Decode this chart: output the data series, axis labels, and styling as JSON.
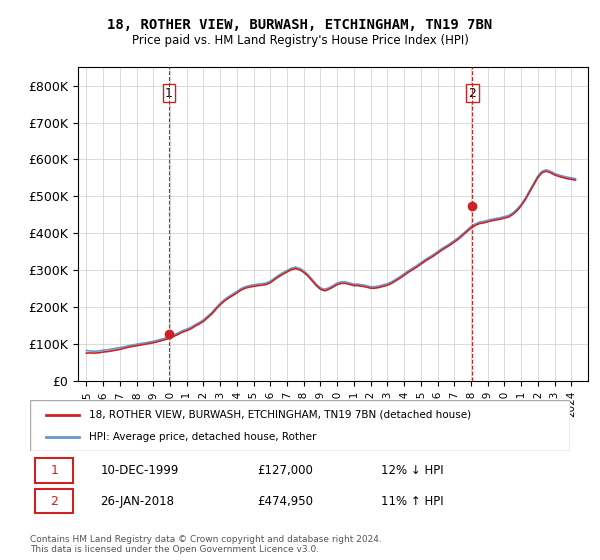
{
  "title": "18, ROTHER VIEW, BURWASH, ETCHINGHAM, TN19 7BN",
  "subtitle": "Price paid vs. HM Land Registry's House Price Index (HPI)",
  "xlabel": "",
  "ylabel": "",
  "ylim": [
    0,
    850000
  ],
  "yticks": [
    0,
    100000,
    200000,
    300000,
    400000,
    500000,
    600000,
    700000,
    800000
  ],
  "ytick_labels": [
    "£0",
    "£100K",
    "£200K",
    "£300K",
    "£400K",
    "£500K",
    "£600K",
    "£700K",
    "£800K"
  ],
  "hpi_color": "#6699cc",
  "price_color": "#cc2222",
  "vline_color": "#cc2222",
  "background_color": "#ffffff",
  "grid_color": "#cccccc",
  "sale1_year": 1999.94,
  "sale1_price": 127000,
  "sale1_label": "1",
  "sale1_date": "10-DEC-1999",
  "sale1_hpi_diff": "12% ↓ HPI",
  "sale2_year": 2018.07,
  "sale2_price": 474950,
  "sale2_label": "2",
  "sale2_date": "26-JAN-2018",
  "sale2_hpi_diff": "11% ↑ HPI",
  "legend_line1": "18, ROTHER VIEW, BURWASH, ETCHINGHAM, TN19 7BN (detached house)",
  "legend_line2": "HPI: Average price, detached house, Rother",
  "footer": "Contains HM Land Registry data © Crown copyright and database right 2024.\nThis data is licensed under the Open Government Licence v3.0.",
  "hpi_data": {
    "years": [
      1995.0,
      1995.25,
      1995.5,
      1995.75,
      1996.0,
      1996.25,
      1996.5,
      1996.75,
      1997.0,
      1997.25,
      1997.5,
      1997.75,
      1998.0,
      1998.25,
      1998.5,
      1998.75,
      1999.0,
      1999.25,
      1999.5,
      1999.75,
      2000.0,
      2000.25,
      2000.5,
      2000.75,
      2001.0,
      2001.25,
      2001.5,
      2001.75,
      2002.0,
      2002.25,
      2002.5,
      2002.75,
      2003.0,
      2003.25,
      2003.5,
      2003.75,
      2004.0,
      2004.25,
      2004.5,
      2004.75,
      2005.0,
      2005.25,
      2005.5,
      2005.75,
      2006.0,
      2006.25,
      2006.5,
      2006.75,
      2007.0,
      2007.25,
      2007.5,
      2007.75,
      2008.0,
      2008.25,
      2008.5,
      2008.75,
      2009.0,
      2009.25,
      2009.5,
      2009.75,
      2010.0,
      2010.25,
      2010.5,
      2010.75,
      2011.0,
      2011.25,
      2011.5,
      2011.75,
      2012.0,
      2012.25,
      2012.5,
      2012.75,
      2013.0,
      2013.25,
      2013.5,
      2013.75,
      2014.0,
      2014.25,
      2014.5,
      2014.75,
      2015.0,
      2015.25,
      2015.5,
      2015.75,
      2016.0,
      2016.25,
      2016.5,
      2016.75,
      2017.0,
      2017.25,
      2017.5,
      2017.75,
      2018.0,
      2018.25,
      2018.5,
      2018.75,
      2019.0,
      2019.25,
      2019.5,
      2019.75,
      2020.0,
      2020.25,
      2020.5,
      2020.75,
      2021.0,
      2021.25,
      2021.5,
      2021.75,
      2022.0,
      2022.25,
      2022.5,
      2022.75,
      2023.0,
      2023.25,
      2023.5,
      2023.75,
      2024.0,
      2024.25
    ],
    "values": [
      82000,
      81000,
      80000,
      81000,
      83000,
      84000,
      86000,
      88000,
      90000,
      92000,
      95000,
      97000,
      99000,
      101000,
      103000,
      105000,
      107000,
      110000,
      113000,
      116000,
      120000,
      125000,
      130000,
      136000,
      140000,
      145000,
      152000,
      158000,
      165000,
      175000,
      185000,
      198000,
      210000,
      220000,
      228000,
      235000,
      242000,
      250000,
      255000,
      258000,
      260000,
      262000,
      263000,
      265000,
      270000,
      278000,
      286000,
      293000,
      299000,
      305000,
      308000,
      305000,
      298000,
      288000,
      275000,
      262000,
      252000,
      248000,
      252000,
      258000,
      265000,
      268000,
      268000,
      265000,
      262000,
      262000,
      260000,
      258000,
      255000,
      255000,
      257000,
      260000,
      263000,
      268000,
      275000,
      282000,
      290000,
      298000,
      305000,
      312000,
      320000,
      328000,
      335000,
      342000,
      350000,
      358000,
      365000,
      372000,
      380000,
      388000,
      398000,
      408000,
      418000,
      425000,
      430000,
      432000,
      435000,
      438000,
      440000,
      442000,
      445000,
      448000,
      455000,
      465000,
      478000,
      495000,
      515000,
      535000,
      555000,
      568000,
      572000,
      568000,
      562000,
      558000,
      555000,
      552000,
      550000,
      548000
    ]
  },
  "price_data": {
    "years": [
      1995.0,
      1995.25,
      1995.5,
      1995.75,
      1996.0,
      1996.25,
      1996.5,
      1996.75,
      1997.0,
      1997.25,
      1997.5,
      1997.75,
      1998.0,
      1998.25,
      1998.5,
      1998.75,
      1999.0,
      1999.25,
      1999.5,
      1999.75,
      2000.0,
      2000.25,
      2000.5,
      2000.75,
      2001.0,
      2001.25,
      2001.5,
      2001.75,
      2002.0,
      2002.25,
      2002.5,
      2002.75,
      2003.0,
      2003.25,
      2003.5,
      2003.75,
      2004.0,
      2004.25,
      2004.5,
      2004.75,
      2005.0,
      2005.25,
      2005.5,
      2005.75,
      2006.0,
      2006.25,
      2006.5,
      2006.75,
      2007.0,
      2007.25,
      2007.5,
      2007.75,
      2008.0,
      2008.25,
      2008.5,
      2008.75,
      2009.0,
      2009.25,
      2009.5,
      2009.75,
      2010.0,
      2010.25,
      2010.5,
      2010.75,
      2011.0,
      2011.25,
      2011.5,
      2011.75,
      2012.0,
      2012.25,
      2012.5,
      2012.75,
      2013.0,
      2013.25,
      2013.5,
      2013.75,
      2014.0,
      2014.25,
      2014.5,
      2014.75,
      2015.0,
      2015.25,
      2015.5,
      2015.75,
      2016.0,
      2016.25,
      2016.5,
      2016.75,
      2017.0,
      2017.25,
      2017.5,
      2017.75,
      2018.0,
      2018.25,
      2018.5,
      2018.75,
      2019.0,
      2019.25,
      2019.5,
      2019.75,
      2020.0,
      2020.25,
      2020.5,
      2020.75,
      2021.0,
      2021.25,
      2021.5,
      2021.75,
      2022.0,
      2022.25,
      2022.5,
      2022.75,
      2023.0,
      2023.25,
      2023.5,
      2023.75,
      2024.0,
      2024.25
    ],
    "values": [
      75000,
      75500,
      75000,
      76000,
      78000,
      79000,
      81000,
      83000,
      85000,
      88000,
      91000,
      93000,
      95000,
      97000,
      99000,
      101000,
      103000,
      106000,
      109000,
      112000,
      116000,
      121000,
      126000,
      132000,
      136000,
      141000,
      148000,
      154000,
      161000,
      171000,
      181000,
      194000,
      206000,
      216000,
      224000,
      231000,
      238000,
      246000,
      251000,
      254000,
      256000,
      258000,
      259000,
      261000,
      266000,
      274000,
      282000,
      289000,
      295000,
      301000,
      304000,
      301000,
      294000,
      284000,
      271000,
      258000,
      248000,
      244000,
      248000,
      254000,
      261000,
      264000,
      264000,
      261000,
      258000,
      258000,
      256000,
      254000,
      251000,
      251000,
      253000,
      256000,
      259000,
      264000,
      271000,
      278000,
      286000,
      294000,
      301000,
      308000,
      316000,
      324000,
      331000,
      338000,
      346000,
      354000,
      361000,
      368000,
      376000,
      384000,
      394000,
      404000,
      414000,
      421000,
      426000,
      428000,
      431000,
      434000,
      436000,
      438000,
      441000,
      444000,
      451000,
      461000,
      474000,
      491000,
      511000,
      531000,
      551000,
      564000,
      568000,
      564000,
      558000,
      554000,
      551000,
      548000,
      546000,
      544000
    ]
  }
}
